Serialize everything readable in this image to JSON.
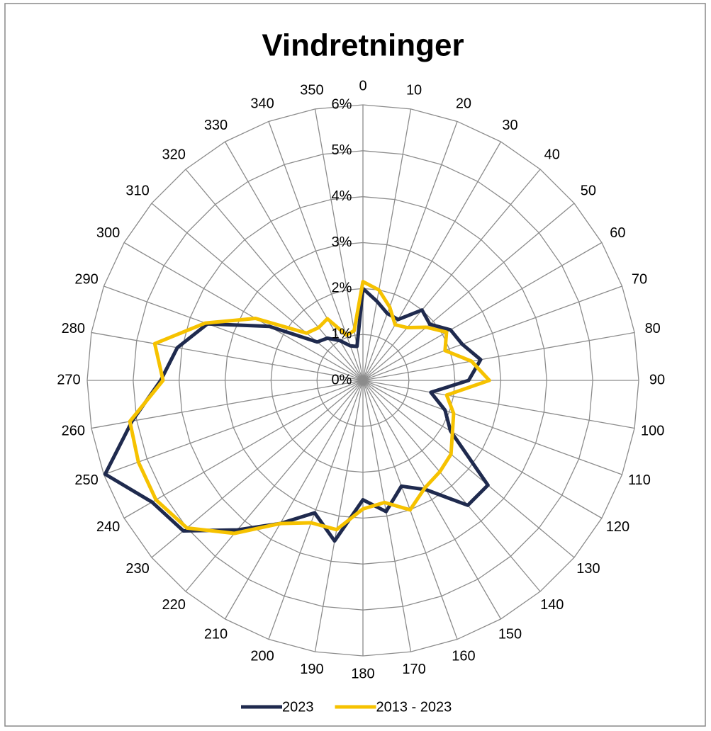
{
  "chart_data": {
    "type": "radar",
    "title": "Vindretninger",
    "categories": [
      "0",
      "10",
      "20",
      "30",
      "40",
      "50",
      "60",
      "70",
      "80",
      "90",
      "100",
      "110",
      "120",
      "130",
      "140",
      "150",
      "160",
      "170",
      "180",
      "190",
      "200",
      "210",
      "220",
      "230",
      "240",
      "250",
      "260",
      "270",
      "280",
      "290",
      "300",
      "310",
      "320",
      "330",
      "340",
      "350"
    ],
    "ylim": [
      0,
      6
    ],
    "yticks": [
      {
        "value": 0,
        "label": "0%"
      },
      {
        "value": 1,
        "label": "1%"
      },
      {
        "value": 2,
        "label": "2%"
      },
      {
        "value": 3,
        "label": "3%"
      },
      {
        "value": 4,
        "label": "4%"
      },
      {
        "value": 5,
        "label": "5%"
      },
      {
        "value": 6,
        "label": "6%"
      }
    ],
    "grid": true,
    "legend": "bottom",
    "series": [
      {
        "name": "2023",
        "color": "#1f2a4e",
        "values": [
          2.0,
          1.75,
          1.55,
          1.53,
          2.0,
          1.9,
          2.2,
          2.3,
          2.6,
          2.3,
          1.5,
          1.9,
          2.2,
          3.55,
          3.55,
          2.75,
          2.45,
          2.9,
          2.6,
          3.55,
          3.07,
          3.6,
          4.25,
          5.1,
          5.3,
          5.97,
          5.1,
          4.4,
          4.1,
          3.6,
          2.35,
          1.3,
          1.2,
          1.0,
          0.8,
          0.75
        ]
      },
      {
        "name": "2013 - 2023",
        "color": "#f6c200",
        "values": [
          2.15,
          2.0,
          1.7,
          1.4,
          1.5,
          1.8,
          2.1,
          1.9,
          2.4,
          2.75,
          1.85,
          2.1,
          2.25,
          2.5,
          2.6,
          2.7,
          3.0,
          2.7,
          2.8,
          3.3,
          3.3,
          3.6,
          4.35,
          5.0,
          5.2,
          5.2,
          5.15,
          4.35,
          4.6,
          3.65,
          2.7,
          1.6,
          1.5,
          1.55,
          1.05,
          1.1
        ]
      }
    ]
  }
}
